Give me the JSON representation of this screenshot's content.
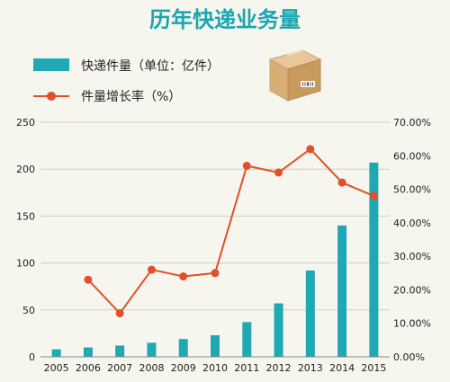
{
  "title": "历年快递业务量",
  "legend": {
    "bar_label": "快递件量（单位：亿件）",
    "line_label": "件量增长率（%）"
  },
  "colors": {
    "bar": "#1ea9b5",
    "line": "#e0502a",
    "title": "#1aa6b0",
    "grid": "#cfcfc8",
    "background": "#f6f6ef"
  },
  "chart_data": {
    "type": "bar",
    "title": "历年快递业务量",
    "categories": [
      "2005",
      "2006",
      "2007",
      "2008",
      "2009",
      "2010",
      "2011",
      "2012",
      "2013",
      "2014",
      "2015"
    ],
    "series": [
      {
        "name": "快递件量（单位：亿件）",
        "type": "bar",
        "axis": "left",
        "values": [
          8,
          10,
          12,
          15,
          19,
          23,
          37,
          57,
          92,
          140,
          207
        ]
      },
      {
        "name": "件量增长率（%）",
        "type": "line",
        "axis": "right",
        "values": [
          null,
          23,
          13,
          26,
          24,
          25,
          57,
          55,
          62,
          52,
          48
        ]
      }
    ],
    "y_left": {
      "range": [
        0,
        250
      ],
      "ticks": [
        "0",
        "50",
        "100",
        "150",
        "200",
        "250"
      ]
    },
    "y_right": {
      "range": [
        0,
        70
      ],
      "ticks": [
        "0.00%",
        "10.00%",
        "20.00%",
        "30.00%",
        "40.00%",
        "50.00%",
        "60.00%",
        "70.00%"
      ]
    },
    "grid": true,
    "legend_position": "top-left"
  }
}
